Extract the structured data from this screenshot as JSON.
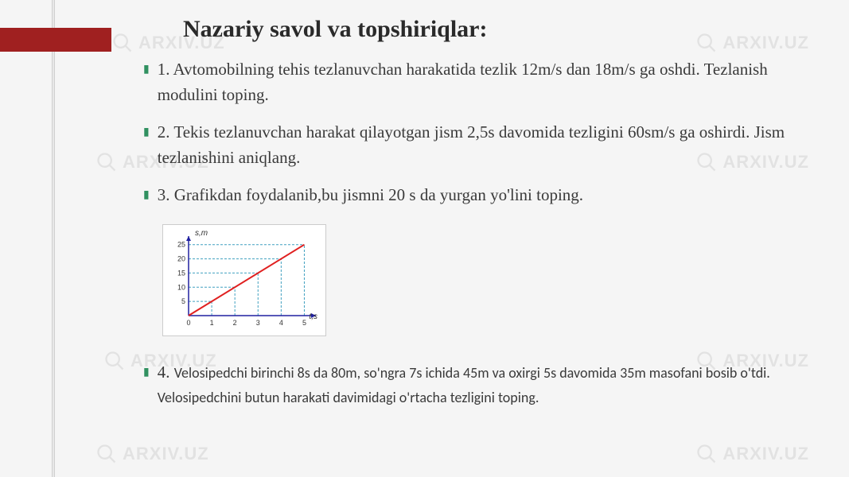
{
  "watermark_text": "ARXIV.UZ",
  "title": "Nazariy savol va topshiriqlar:",
  "questions": {
    "q1": "1.  Avtomobilning tehis tezlanuvchan harakatida tezlik 12m/s dan 18m/s ga oshdi. Tezlanish modulini toping.",
    "q2": "2.  Tekis tezlanuvchan harakat qilayotgan jism 2,5s davomida tezligini 60sm/s ga oshirdi. Jism tezlanishini aniqlang.",
    "q3": "3. Grafikdan foydalanib,bu jismni 20 s da yurgan yo'lini toping.",
    "q4_prefix": "4. ",
    "q4_body": "Velosipedchi birinchi 8s da 80m, so'ngra 7s ichida 45m va oxirgi 5s davomida 35m masofani bosib o'tdi. Velosipedchini butun harakati davimidagi o'rtacha tezligini toping."
  },
  "chart": {
    "type": "line",
    "x_label": "t,s",
    "y_label": "s,m",
    "x_ticks": [
      0,
      1,
      2,
      3,
      4,
      5
    ],
    "y_ticks": [
      5,
      10,
      15,
      20,
      25
    ],
    "xlim": [
      0,
      5.5
    ],
    "ylim": [
      0,
      28
    ],
    "line_points": [
      [
        0,
        0
      ],
      [
        5,
        25
      ]
    ],
    "line_color": "#e02020",
    "line_width": 2,
    "axis_color": "#2020a0",
    "grid_dash_color": "#40a0c0",
    "background": "#ffffff",
    "tick_font_size": 9,
    "label_font_size": 10,
    "drop_lines_x": [
      1,
      2,
      3,
      4,
      5
    ],
    "drop_lines_y": [
      5,
      10,
      15,
      20,
      25
    ]
  },
  "colors": {
    "accent_bar": "#a02020",
    "bullet": "#309060",
    "text": "#3a3a3a",
    "watermark": "#d0d0d0",
    "page_bg": "#f5f5f5"
  }
}
